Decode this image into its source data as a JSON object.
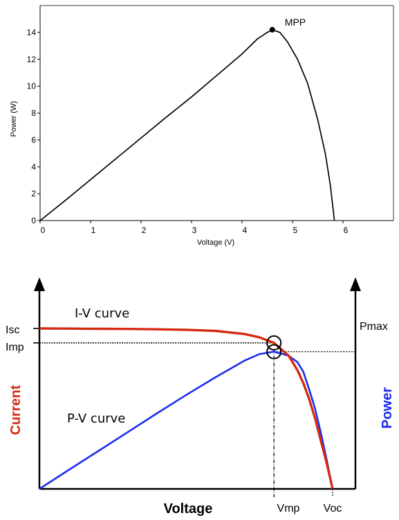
{
  "chart_data": [
    {
      "type": "line",
      "xlabel": "Voltage (V)",
      "ylabel": "Power (W)",
      "xlim": [
        0,
        7
      ],
      "ylim": [
        0,
        16
      ],
      "x_ticks": [
        "0",
        "1",
        "2",
        "3",
        "4",
        "5",
        "6"
      ],
      "y_ticks": [
        "0",
        "2",
        "4",
        "6",
        "8",
        "10",
        "12",
        "14"
      ],
      "grid": false,
      "series": [
        {
          "color": "#000000",
          "points": [
            [
              0,
              0
            ],
            [
              0.5,
              1.5
            ],
            [
              1,
              3.05
            ],
            [
              1.5,
              4.6
            ],
            [
              2,
              6.15
            ],
            [
              2.5,
              7.7
            ],
            [
              3,
              9.2
            ],
            [
              3.5,
              10.8
            ],
            [
              4,
              12.4
            ],
            [
              4.3,
              13.5
            ],
            [
              4.5,
              14.0
            ],
            [
              4.6,
              14.2
            ],
            [
              4.75,
              14.0
            ],
            [
              4.9,
              13.3
            ],
            [
              5.1,
              12.0
            ],
            [
              5.3,
              10.2
            ],
            [
              5.5,
              7.5
            ],
            [
              5.65,
              5.0
            ],
            [
              5.75,
              2.6
            ],
            [
              5.83,
              0
            ]
          ]
        }
      ],
      "annotations": [
        {
          "label": "MPP",
          "x": 4.6,
          "y": 14.2
        }
      ]
    },
    {
      "type": "line",
      "xlabel": "Voltage",
      "ylabel_left": "Current",
      "ylabel_right": "Power",
      "x_tick_labels": [
        "Vmp",
        "Voc"
      ],
      "left_tick_labels": [
        "Isc",
        "Imp"
      ],
      "right_tick_labels": [
        "Pmax"
      ],
      "x": [
        0,
        0.1,
        0.2,
        0.3,
        0.4,
        0.5,
        0.6,
        0.7,
        0.75,
        0.8,
        0.85,
        0.88,
        0.9,
        0.92,
        0.94,
        0.96,
        0.98,
        1.0
      ],
      "series": [
        {
          "name": "I-V curve",
          "color": "#d42a12",
          "values": [
            1.0,
            0.999,
            0.998,
            0.997,
            0.995,
            0.992,
            0.985,
            0.965,
            0.945,
            0.91,
            0.83,
            0.74,
            0.66,
            0.56,
            0.44,
            0.3,
            0.16,
            0.0
          ]
        },
        {
          "name": "P-V curve",
          "color": "#1b2cf0",
          "values": [
            0,
            0.118,
            0.235,
            0.352,
            0.47,
            0.585,
            0.695,
            0.8,
            0.84,
            0.855,
            0.83,
            0.79,
            0.73,
            0.62,
            0.5,
            0.35,
            0.18,
            0.0
          ]
        }
      ],
      "markers": [
        {
          "x": 0.8,
          "y": 0.855,
          "shape": "circle"
        },
        {
          "x": 0.8,
          "y": 0.91,
          "shape": "circle"
        }
      ]
    }
  ]
}
